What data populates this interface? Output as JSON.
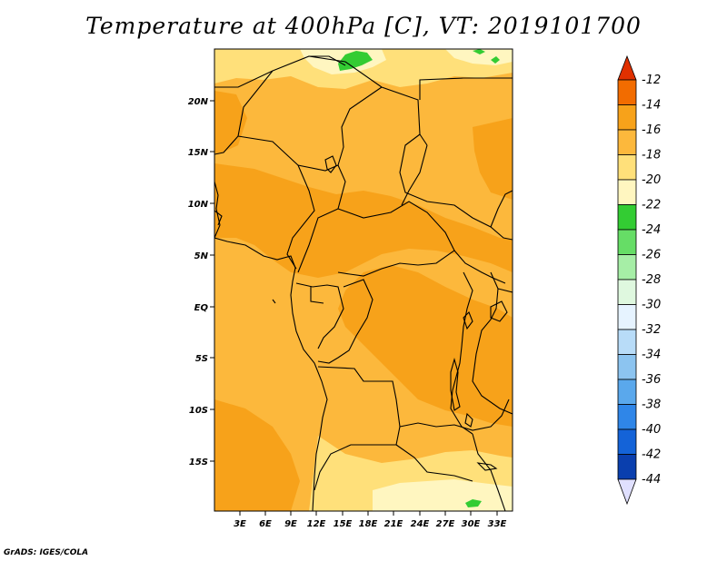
{
  "title": "Temperature at 400hPa [C], VT: 2019101700",
  "credit": "GrADS: IGES/COLA",
  "colors": {
    "c_24_22": "#33cc33",
    "c_22_20": "#fff6c0",
    "c_20_18": "#ffe07a",
    "c_18_16": "#fcb83c",
    "c_16_14": "#f7a21a",
    "c_14_12": "#f26c00",
    "c_over": "#e03000",
    "border": "#000000"
  },
  "map": {
    "lat_labels": [
      "20N",
      "15N",
      "10N",
      "5N",
      "EQ",
      "5S",
      "10S",
      "15S"
    ],
    "lon_labels": [
      "3E",
      "6E",
      "9E",
      "12E",
      "15E",
      "18E",
      "21E",
      "24E",
      "27E",
      "30E",
      "33E"
    ]
  },
  "colorbar": {
    "labels": [
      "-12",
      "-14",
      "-16",
      "-18",
      "-20",
      "-22",
      "-24",
      "-26",
      "-28",
      "-30",
      "-32",
      "-34",
      "-36",
      "-38",
      "-40",
      "-42",
      "-44"
    ],
    "colors": [
      "#f26c00",
      "#f7a21a",
      "#fcb83c",
      "#ffe07a",
      "#fff6c0",
      "#33cc33",
      "#66dd66",
      "#a6eea6",
      "#dff8df",
      "#e6f3ff",
      "#b8dcf8",
      "#8cc4f0",
      "#5aa8ec",
      "#2f86e8",
      "#1463d8",
      "#0a3fae",
      "#08107a"
    ],
    "top_arrow_color": "#e03000",
    "bottom_arrow_color": "#e0e0ff"
  }
}
